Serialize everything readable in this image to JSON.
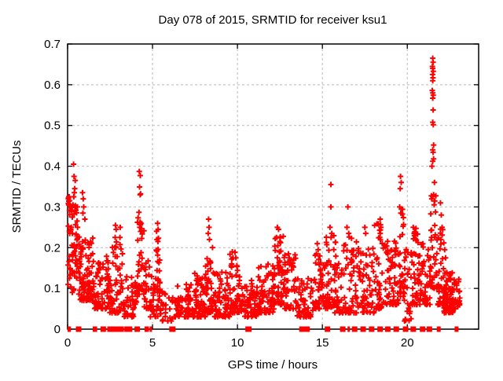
{
  "chart_data": {
    "type": "scatter",
    "title": "Day 078 of 2015, SRMTID for receiver ksu1",
    "xlabel": "GPS time / hours",
    "ylabel": "SRMTID / TECUs",
    "xlim": [
      0,
      24.2
    ],
    "ylim": [
      0,
      0.7
    ],
    "xticks": [
      0,
      5,
      10,
      15,
      20
    ],
    "xtick_labels": [
      "0",
      "5",
      "10",
      "15",
      "20"
    ],
    "yticks": [
      0,
      0.1,
      0.2,
      0.3,
      0.4,
      0.5,
      0.6,
      0.7
    ],
    "ytick_labels": [
      "0",
      "0.1",
      "0.2",
      "0.3",
      "0.4",
      "0.5",
      "0.6",
      "0.7"
    ],
    "grid": true,
    "grid_style": "dashed",
    "grid_color": "#b9b9b9",
    "frame_color": "#000000",
    "background": "#ffffff",
    "legend": "none",
    "marker": {
      "glyph": "+",
      "color": "#ff0000",
      "size": 7,
      "stroke_width": 2
    },
    "zero_mark_height": 7,
    "feature_points": [
      [
        0.05,
        0.32
      ],
      [
        0.06,
        0.305
      ],
      [
        0.1,
        0.24
      ],
      [
        0.35,
        0.405
      ],
      [
        0.38,
        0.375
      ],
      [
        0.45,
        0.365
      ],
      [
        0.42,
        0.345
      ],
      [
        0.4,
        0.335
      ],
      [
        0.36,
        0.325
      ],
      [
        0.48,
        0.3
      ],
      [
        0.88,
        0.335
      ],
      [
        0.92,
        0.32
      ],
      [
        0.95,
        0.3
      ],
      [
        0.9,
        0.285
      ],
      [
        1.02,
        0.27
      ],
      [
        2.82,
        0.255
      ],
      [
        2.86,
        0.245
      ],
      [
        2.8,
        0.225
      ],
      [
        3.1,
        0.25
      ],
      [
        3.08,
        0.225
      ],
      [
        4.22,
        0.387
      ],
      [
        4.28,
        0.377
      ],
      [
        4.24,
        0.349
      ],
      [
        4.3,
        0.332
      ],
      [
        4.27,
        0.33
      ],
      [
        4.2,
        0.287
      ],
      [
        4.33,
        0.26
      ],
      [
        4.25,
        0.25
      ],
      [
        4.3,
        0.24
      ],
      [
        5.3,
        0.26
      ],
      [
        5.33,
        0.245
      ],
      [
        5.26,
        0.22
      ],
      [
        8.3,
        0.27
      ],
      [
        8.33,
        0.25
      ],
      [
        8.28,
        0.235
      ],
      [
        8.35,
        0.22
      ],
      [
        9.7,
        0.19
      ],
      [
        9.74,
        0.175
      ],
      [
        12.35,
        0.25
      ],
      [
        12.42,
        0.245
      ],
      [
        12.3,
        0.225
      ],
      [
        12.5,
        0.215
      ],
      [
        12.38,
        0.205
      ],
      [
        13.0,
        0.185
      ],
      [
        13.05,
        0.175
      ],
      [
        14.7,
        0.21
      ],
      [
        14.75,
        0.195
      ],
      [
        14.65,
        0.185
      ],
      [
        15.5,
        0.355
      ],
      [
        15.5,
        0.3
      ],
      [
        15.45,
        0.25
      ],
      [
        15.55,
        0.235
      ],
      [
        16.5,
        0.3
      ],
      [
        16.45,
        0.25
      ],
      [
        16.55,
        0.235
      ],
      [
        17.5,
        0.25
      ],
      [
        17.55,
        0.235
      ],
      [
        18.4,
        0.27
      ],
      [
        18.45,
        0.25
      ],
      [
        18.38,
        0.225
      ],
      [
        19.6,
        0.375
      ],
      [
        19.64,
        0.36
      ],
      [
        19.58,
        0.345
      ],
      [
        19.55,
        0.3
      ],
      [
        19.62,
        0.285
      ],
      [
        20.35,
        0.25
      ],
      [
        20.4,
        0.235
      ],
      [
        21.5,
        0.665
      ],
      [
        21.52,
        0.655
      ],
      [
        21.48,
        0.645
      ],
      [
        21.5,
        0.64
      ],
      [
        21.53,
        0.633
      ],
      [
        21.49,
        0.625
      ],
      [
        21.51,
        0.617
      ],
      [
        21.5,
        0.61
      ],
      [
        21.47,
        0.586
      ],
      [
        21.5,
        0.58
      ],
      [
        21.53,
        0.574
      ],
      [
        21.5,
        0.567
      ],
      [
        21.52,
        0.538
      ],
      [
        21.5,
        0.508
      ],
      [
        21.53,
        0.502
      ],
      [
        21.55,
        0.452
      ],
      [
        21.5,
        0.44
      ],
      [
        21.52,
        0.434
      ],
      [
        21.55,
        0.418
      ],
      [
        21.5,
        0.412
      ],
      [
        21.45,
        0.4
      ],
      [
        21.6,
        0.36
      ],
      [
        21.55,
        0.33
      ],
      [
        21.62,
        0.315
      ],
      [
        21.58,
        0.305
      ],
      [
        21.95,
        0.31
      ],
      [
        22.0,
        0.28
      ],
      [
        22.05,
        0.25
      ],
      [
        21.98,
        0.22
      ],
      [
        22.2,
        0.195
      ],
      [
        22.25,
        0.175
      ]
    ],
    "noise_bands_format": [
      "x_start",
      "x_end",
      "y_low",
      "y_high",
      "count",
      "bottom_bias_exponent"
    ],
    "noise_bands": [
      [
        0.02,
        0.18,
        0.1,
        0.33,
        22,
        0.9
      ],
      [
        0.18,
        0.62,
        0.08,
        0.31,
        48,
        1.0
      ],
      [
        0.62,
        1.5,
        0.07,
        0.23,
        95,
        1.6
      ],
      [
        1.5,
        2.05,
        0.05,
        0.17,
        40,
        1.8
      ],
      [
        2.05,
        2.45,
        0.05,
        0.19,
        32,
        1.7
      ],
      [
        2.45,
        2.62,
        0.04,
        0.12,
        14,
        1.8
      ],
      [
        2.6,
        3.25,
        0.04,
        0.22,
        45,
        2.2
      ],
      [
        3.25,
        3.95,
        0.03,
        0.13,
        40,
        1.8
      ],
      [
        3.95,
        4.1,
        0.04,
        0.12,
        10,
        1.5
      ],
      [
        4.1,
        4.5,
        0.08,
        0.28,
        35,
        1.3
      ],
      [
        4.5,
        4.85,
        0.05,
        0.17,
        22,
        1.8
      ],
      [
        4.85,
        5.55,
        0.03,
        0.13,
        45,
        1.5
      ],
      [
        5.2,
        5.45,
        0.13,
        0.26,
        12,
        1.2
      ],
      [
        5.55,
        6.2,
        0.02,
        0.09,
        22,
        1.5
      ],
      [
        6.25,
        7.35,
        0.03,
        0.11,
        60,
        1.6
      ],
      [
        7.35,
        8.1,
        0.03,
        0.14,
        62,
        1.8
      ],
      [
        8.1,
        8.6,
        0.04,
        0.22,
        45,
        2.0
      ],
      [
        8.6,
        9.55,
        0.03,
        0.14,
        70,
        1.9
      ],
      [
        9.55,
        10.0,
        0.04,
        0.19,
        42,
        2.0
      ],
      [
        10.0,
        10.4,
        0.04,
        0.14,
        25,
        1.8
      ],
      [
        10.4,
        11.15,
        0.03,
        0.13,
        55,
        1.7
      ],
      [
        11.15,
        12.15,
        0.04,
        0.16,
        78,
        1.8
      ],
      [
        12.15,
        12.7,
        0.06,
        0.23,
        48,
        1.6
      ],
      [
        12.7,
        13.5,
        0.05,
        0.185,
        50,
        1.7
      ],
      [
        13.5,
        14.45,
        0.03,
        0.13,
        55,
        1.8
      ],
      [
        14.45,
        15.05,
        0.05,
        0.2,
        40,
        1.9
      ],
      [
        15.05,
        15.7,
        0.05,
        0.25,
        45,
        2.1
      ],
      [
        15.7,
        16.45,
        0.04,
        0.22,
        45,
        2.0
      ],
      [
        16.45,
        17.25,
        0.04,
        0.24,
        52,
        2.1
      ],
      [
        17.25,
        18.05,
        0.04,
        0.2,
        50,
        1.9
      ],
      [
        18.05,
        18.7,
        0.05,
        0.26,
        45,
        2.0
      ],
      [
        18.7,
        19.5,
        0.06,
        0.22,
        60,
        1.8
      ],
      [
        19.5,
        19.8,
        0.08,
        0.3,
        26,
        1.6
      ],
      [
        19.8,
        20.25,
        0.02,
        0.2,
        30,
        1.7
      ],
      [
        20.25,
        20.7,
        0.06,
        0.25,
        40,
        1.9
      ],
      [
        20.7,
        21.35,
        0.06,
        0.21,
        55,
        1.8
      ],
      [
        21.35,
        21.8,
        0.1,
        0.33,
        42,
        1.4
      ],
      [
        21.8,
        22.15,
        0.06,
        0.28,
        30,
        2.0
      ],
      [
        22.15,
        22.7,
        0.04,
        0.14,
        85,
        1.5
      ],
      [
        22.7,
        23.1,
        0.05,
        0.13,
        25,
        1.5
      ]
    ],
    "zero_marks_format": [
      "x_hours",
      "pixel_width"
    ],
    "zero_marks": [
      [
        0.07,
        3
      ],
      [
        0.13,
        3
      ],
      [
        0.65,
        7
      ],
      [
        1.55,
        3
      ],
      [
        1.67,
        3
      ],
      [
        2.1,
        7
      ],
      [
        2.5,
        7
      ],
      [
        2.62,
        3
      ],
      [
        2.78,
        7
      ],
      [
        2.95,
        7
      ],
      [
        3.15,
        7
      ],
      [
        3.5,
        7
      ],
      [
        3.65,
        7
      ],
      [
        4.1,
        7
      ],
      [
        4.6,
        3
      ],
      [
        4.72,
        3
      ],
      [
        4.9,
        3
      ],
      [
        6.17,
        8
      ],
      [
        10.65,
        8
      ],
      [
        13.8,
        7
      ],
      [
        14.1,
        7
      ],
      [
        15.3,
        7
      ],
      [
        16.2,
        7
      ],
      [
        16.55,
        3
      ],
      [
        16.9,
        7
      ],
      [
        17.4,
        7
      ],
      [
        17.9,
        7
      ],
      [
        18.4,
        7
      ],
      [
        18.85,
        7
      ],
      [
        19.35,
        7
      ],
      [
        19.9,
        7
      ],
      [
        20.35,
        7
      ],
      [
        20.9,
        7
      ],
      [
        21.3,
        7
      ],
      [
        21.85,
        5
      ],
      [
        22.9,
        5
      ]
    ],
    "seed": 20150781
  }
}
